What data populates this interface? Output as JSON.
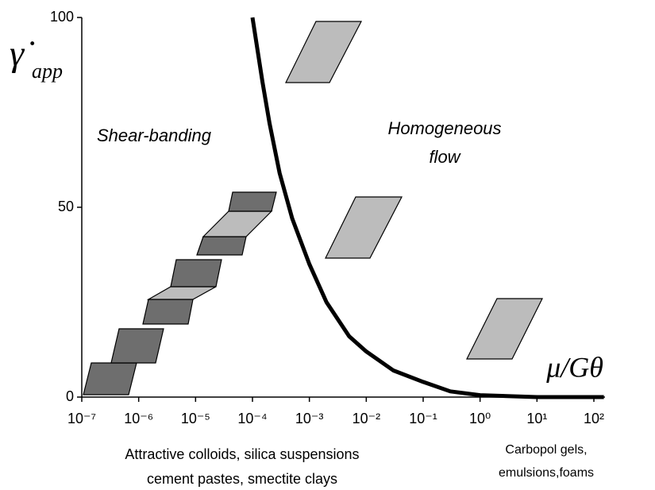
{
  "chart_data": {
    "type": "line",
    "y_label": {
      "symbol": "γ̇",
      "subscript": "app"
    },
    "x_label": "μ/Gθ",
    "annotations": [
      "Shear-banding",
      "Homogeneous",
      "flow"
    ],
    "left_caption": [
      "Attractive colloids, silica suspensions",
      "cement pastes, smectite clays"
    ],
    "right_caption": [
      "Carbopol gels,",
      "emulsions,foams"
    ],
    "log_x": true,
    "x": [
      0.0001,
      0.00015,
      0.0002,
      0.0003,
      0.0005,
      0.001,
      0.002,
      0.005,
      0.01,
      0.03,
      0.1,
      0.3,
      1,
      10,
      150
    ],
    "series": [
      {
        "color": "#000000",
        "values": [
          100,
          83,
          72,
          59,
          47,
          35,
          25,
          16,
          12,
          7,
          4,
          1.5,
          0.5,
          0,
          0
        ]
      }
    ],
    "xlim": [
      1e-07,
      100
    ],
    "ylim": [
      0,
      100
    ],
    "xticks": [
      {
        "value": 1e-07,
        "label": "10⁻⁷"
      },
      {
        "value": 1e-06,
        "label": "10⁻⁶"
      },
      {
        "value": 1e-05,
        "label": "10⁻⁵"
      },
      {
        "value": 0.0001,
        "label": "10⁻⁴"
      },
      {
        "value": 0.001,
        "label": "10⁻³"
      },
      {
        "value": 0.01,
        "label": "10⁻²"
      },
      {
        "value": 0.1,
        "label": "10⁻¹"
      },
      {
        "value": 1,
        "label": "10⁰"
      },
      {
        "value": 10,
        "label": "10¹"
      },
      {
        "value": 100,
        "label": "10²"
      }
    ],
    "yticks": [
      0,
      50,
      100
    ]
  }
}
